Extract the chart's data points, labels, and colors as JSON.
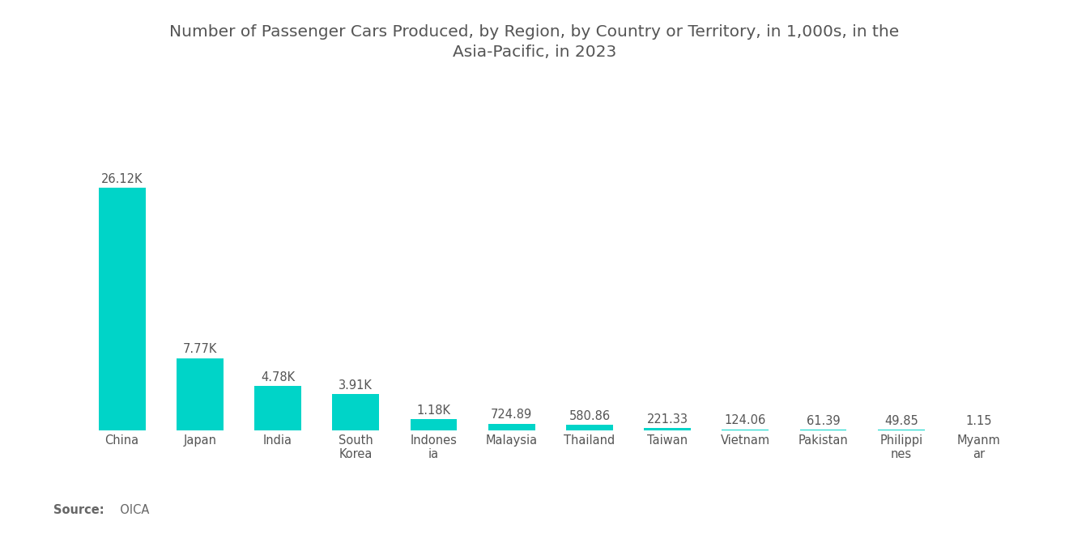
{
  "title": "Number of Passenger Cars Produced, by Region, by Country or Territory, in 1,000s, in the\nAsia-Pacific, in 2023",
  "categories": [
    "China",
    "Japan",
    "India",
    "South\nKorea",
    "Indones\nia",
    "Malaysia",
    "Thailand",
    "Taiwan",
    "Vietnam",
    "Pakistan",
    "Philippi\nnes",
    "Myanm\nar"
  ],
  "values": [
    26120,
    7770,
    4780,
    3910,
    1180,
    724.89,
    580.86,
    221.33,
    124.06,
    61.39,
    49.85,
    1.15
  ],
  "labels": [
    "26.12K",
    "7.77K",
    "4.78K",
    "3.91K",
    "1.18K",
    "724.89",
    "580.86",
    "221.33",
    "124.06",
    "61.39",
    "49.85",
    "1.15"
  ],
  "bar_color": "#00D4C8",
  "background_color": "#ffffff",
  "title_color": "#555555",
  "label_color": "#555555",
  "source_label_bold": "Source:",
  "source_label_normal": "  OICA",
  "source_color": "#666666",
  "title_fontsize": 14.5,
  "label_fontsize": 10.5,
  "tick_fontsize": 10.5
}
